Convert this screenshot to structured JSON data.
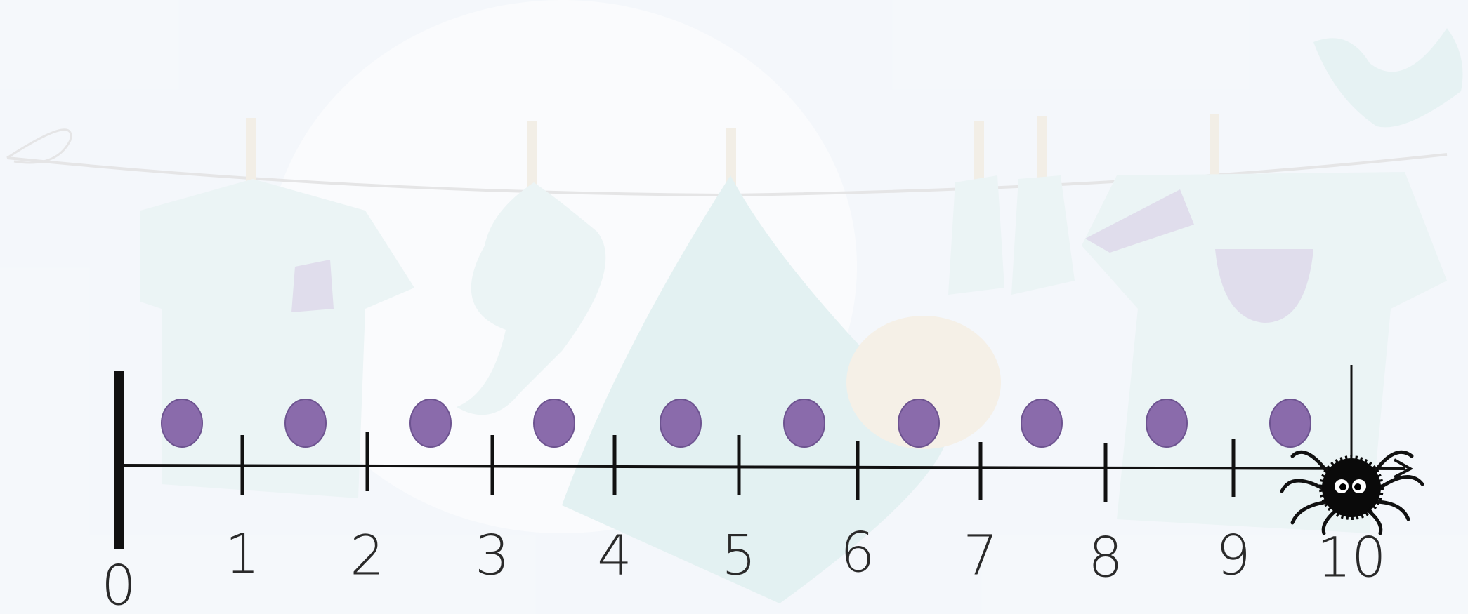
{
  "number_line": {
    "labels": [
      "0",
      "1",
      "2",
      "3",
      "4",
      "5",
      "6",
      "7",
      "8",
      "9",
      "10"
    ]
  }
}
